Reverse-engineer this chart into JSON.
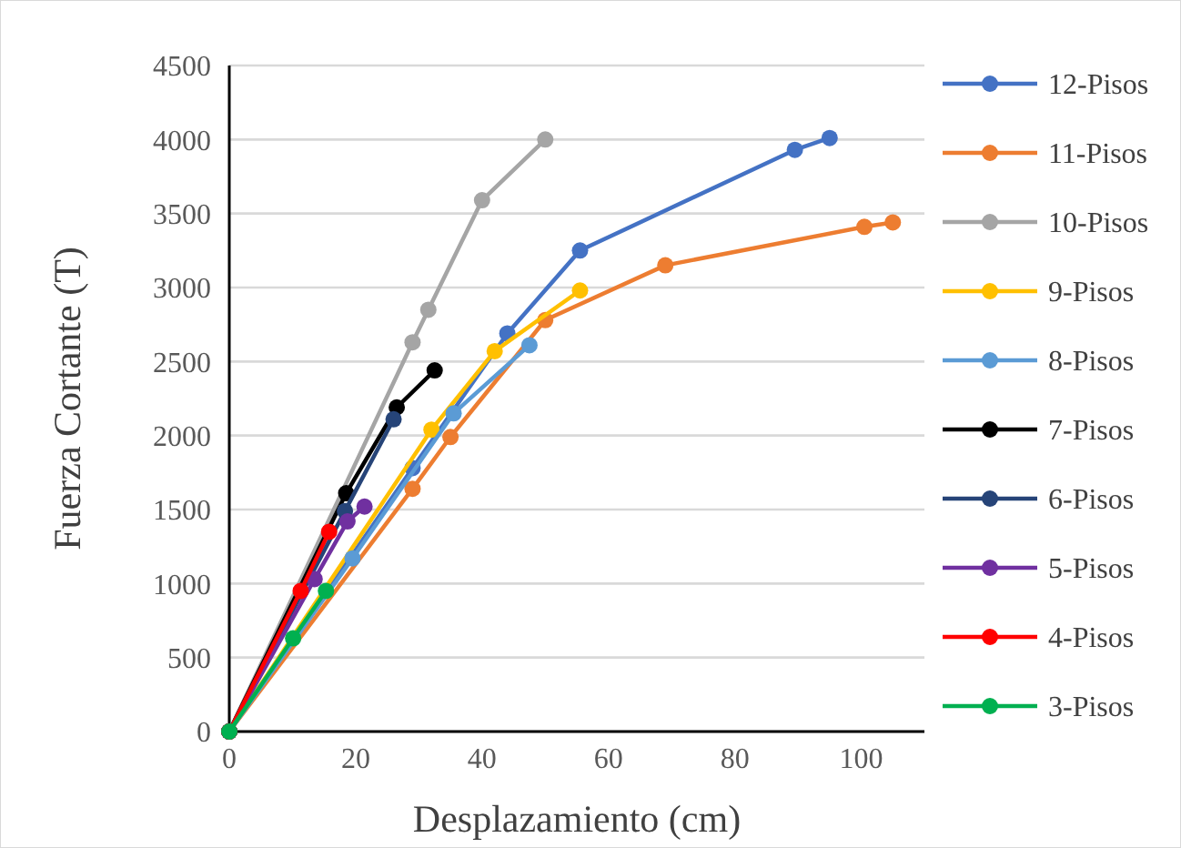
{
  "chart_data": {
    "type": "line",
    "xlabel": "Desplazamiento (cm)",
    "ylabel": "Fuerza Cortante (T)",
    "xlim": [
      0,
      110
    ],
    "xticks": [
      0,
      20,
      40,
      60,
      80,
      100
    ],
    "ylim": [
      0,
      4500
    ],
    "yticks": [
      0,
      500,
      1000,
      1500,
      2000,
      2500,
      3000,
      3500,
      4000,
      4500
    ],
    "grid": "y",
    "legend": "right",
    "marker": "circle",
    "line_style": "solid",
    "series": [
      {
        "name": "12-Pisos",
        "color": "#4472c4",
        "x": [
          0,
          29,
          44,
          55.5,
          89.5,
          95
        ],
        "values": [
          0,
          1780,
          2690,
          3250,
          3930,
          4010
        ]
      },
      {
        "name": "11-Pisos",
        "color": "#ed7d31",
        "x": [
          0,
          29,
          35,
          50,
          69,
          100.5,
          105
        ],
        "values": [
          0,
          1640,
          1990,
          2780,
          3150,
          3410,
          3440
        ]
      },
      {
        "name": "10-Pisos",
        "color": "#a5a5a5",
        "x": [
          0,
          29,
          31.5,
          40,
          50
        ],
        "values": [
          0,
          2630,
          2850,
          3590,
          4000
        ]
      },
      {
        "name": "9-Pisos",
        "color": "#ffc000",
        "x": [
          0,
          32,
          42,
          55.5
        ],
        "values": [
          0,
          2040,
          2570,
          2980
        ]
      },
      {
        "name": "8-Pisos",
        "color": "#5b9bd5",
        "x": [
          0,
          19.5,
          35.5,
          47.5
        ],
        "values": [
          0,
          1170,
          2150,
          2610
        ]
      },
      {
        "name": "7-Pisos",
        "color": "#000000",
        "x": [
          0,
          18.5,
          26.5,
          32.5
        ],
        "values": [
          0,
          1610,
          2190,
          2440
        ]
      },
      {
        "name": "6-Pisos",
        "color": "#264478",
        "x": [
          0,
          18.3,
          26
        ],
        "values": [
          0,
          1490,
          2110
        ]
      },
      {
        "name": "5-Pisos",
        "color": "#7030a0",
        "x": [
          0,
          13.5,
          18.7,
          21.4
        ],
        "values": [
          0,
          1030,
          1420,
          1520
        ]
      },
      {
        "name": "4-Pisos",
        "color": "#ff0000",
        "x": [
          0,
          11.3,
          15.8
        ],
        "values": [
          0,
          950,
          1350
        ]
      },
      {
        "name": "3-Pisos",
        "color": "#00b050",
        "x": [
          0,
          10.1,
          15.3
        ],
        "values": [
          0,
          630,
          950
        ]
      }
    ]
  }
}
